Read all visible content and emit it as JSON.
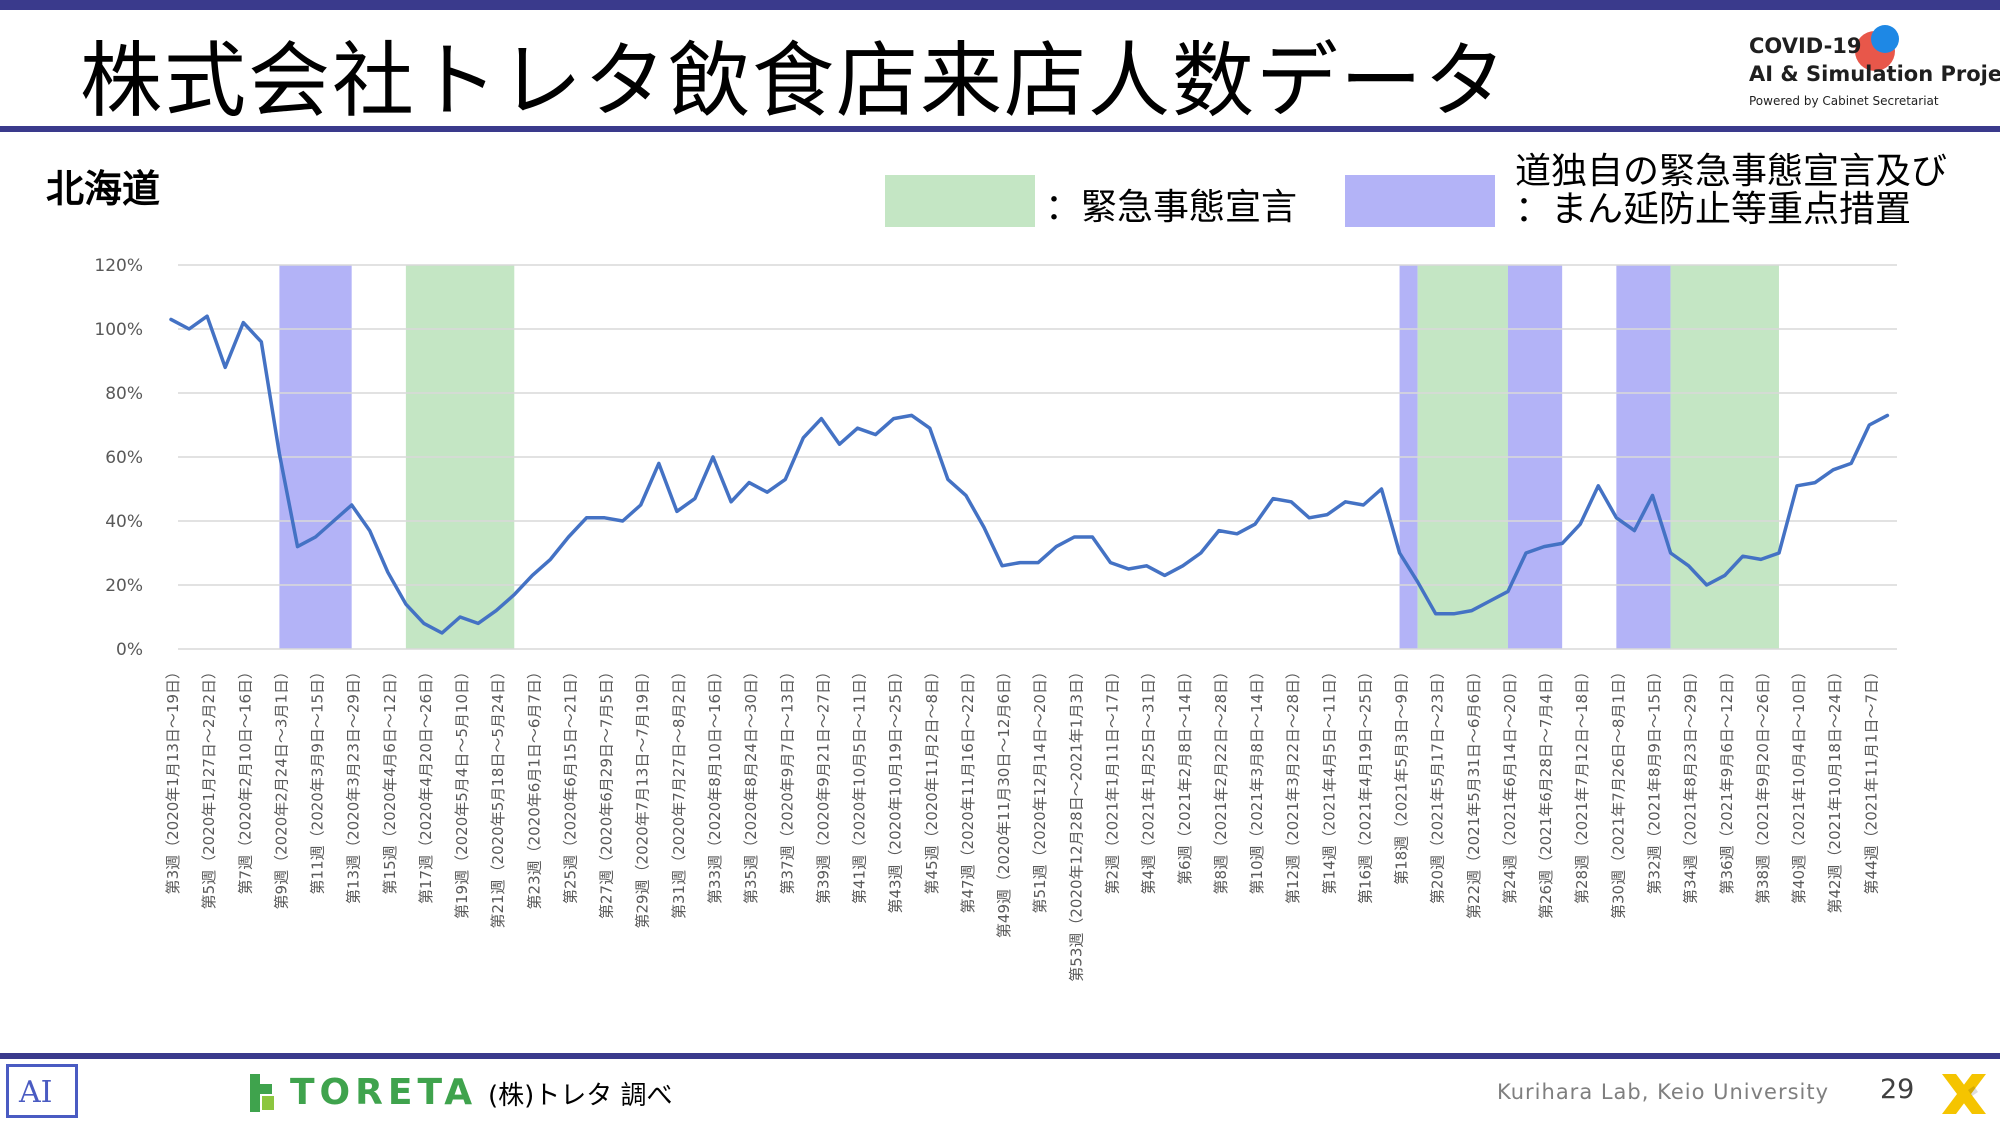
{
  "title": "株式会社トレタ飲食店来店人数データ",
  "logo": {
    "line1": "COVID-19",
    "line2": "AI & Simulation Project",
    "line3": "Powered by Cabinet Secretariat"
  },
  "region": "北海道",
  "legend": {
    "emergency": {
      "label": "：緊急事態宣言",
      "color": "#c4e6c4"
    },
    "prefectural": {
      "label_line1": "道独自の緊急事態宣言及び",
      "label_line2": "：まん延防止等重点措置",
      "color": "#b3b3f7"
    }
  },
  "colors": {
    "line": "#4472c4",
    "grid": "#d9d9d9",
    "axis_text": "#595959",
    "rule": "#3a3a8c"
  },
  "footer": {
    "source": "(株)トレタ 調べ",
    "lab": "Kurihara Lab, Keio University",
    "page": "29",
    "toreta": "TORETA",
    "ai_logo": "AI"
  },
  "chart_data": {
    "type": "line",
    "ylabel": "",
    "xlabel": "",
    "ylim": [
      0,
      120
    ],
    "yticks": [
      "0%",
      "20%",
      "40%",
      "60%",
      "80%",
      "100%",
      "120%"
    ],
    "grid": true,
    "x_labels": [
      "第3週（2020年1月13日～19日）",
      "第5週（2020年1月27日～2月2日）",
      "第7週（2020年2月10日～16日）",
      "第9週（2020年2月24日～3月1日）",
      "第11週（2020年3月9日～15日）",
      "第13週（2020年3月23日～29日）",
      "第15週（2020年4月6日～12日）",
      "第17週（2020年4月20日～26日）",
      "第19週（2020年5月4日～5月10日）",
      "第21週（2020年5月18日～5月24日）",
      "第23週（2020年6月1日～6月7日）",
      "第25週（2020年6月15日～21日）",
      "第27週（2020年6月29日～7月5日）",
      "第29週（2020年7月13日～7月19日）",
      "第31週（2020年7月27日～8月2日）",
      "第33週（2020年8月10日～16日）",
      "第35週（2020年8月24日～30日）",
      "第37週（2020年9月7日～13日）",
      "第39週（2020年9月21日～27日）",
      "第41週（2020年10月5日～11日）",
      "第43週（2020年10月19日～25日）",
      "第45週（2020年11月2日～8日）",
      "第47週（2020年11月16日～22日）",
      "第49週（2020年11月30日～12月6日）",
      "第51週（2020年12月14日～20日）",
      "第53週（2020年12月28日～2021年1月3日）",
      "第2週（2021年1月11日～17日）",
      "第4週（2021年1月25日～31日）",
      "第6週（2021年2月8日～14日）",
      "第8週（2021年2月22日～28日）",
      "第10週（2021年3月8日～14日）",
      "第12週（2021年3月22日～28日）",
      "第14週（2021年4月5日～11日）",
      "第16週（2021年4月19日～25日）",
      "第18週（2021年5月3日～9日）",
      "第20週（2021年5月17日～23日）",
      "第22週（2021年5月31日～6月6日）",
      "第24週（2021年6月14日～20日）",
      "第26週（2021年6月28日～7月4日）",
      "第28週（2021年7月12日～18日）",
      "第30週（2021年7月26日～8月1日）",
      "第32週（2021年8月9日～15日）",
      "第34週（2021年8月23日～29日）",
      "第36週（2021年9月6日～12日）",
      "第38週（2021年9月20日～26日）",
      "第40週（2021年10月4日～10日）",
      "第42週（2021年10月18日～24日）",
      "第44週（2021年11月1日～7日）"
    ],
    "series": [
      {
        "values": [
          103,
          100,
          104,
          88,
          102,
          96,
          61,
          32,
          35,
          40,
          45,
          37,
          24,
          14,
          8,
          5,
          10,
          8,
          12,
          17,
          23,
          28,
          35,
          41,
          41,
          40,
          45,
          58,
          43,
          47,
          60,
          46,
          52,
          49,
          53,
          66,
          72,
          64,
          69,
          67,
          72,
          73,
          69,
          53,
          48,
          38,
          26,
          27,
          27,
          32,
          35,
          35,
          27,
          25,
          26,
          23,
          26,
          30,
          37,
          36,
          39,
          47,
          46,
          41,
          42,
          46,
          45,
          50,
          30,
          21,
          11,
          11,
          12,
          15,
          18,
          30,
          32,
          33,
          39,
          51,
          41,
          37,
          48,
          30,
          26,
          20,
          23,
          29,
          28,
          30,
          51,
          52,
          56,
          58,
          70,
          73
        ]
      }
    ],
    "shaded_ranges": [
      {
        "type": "prefectural",
        "start_index": 6,
        "end_index": 10
      },
      {
        "type": "emergency",
        "start_index": 13,
        "end_index": 19
      },
      {
        "type": "prefectural",
        "start_index": 68,
        "end_index": 69
      },
      {
        "type": "emergency",
        "start_index": 69,
        "end_index": 74
      },
      {
        "type": "prefectural",
        "start_index": 74,
        "end_index": 77
      },
      {
        "type": "prefectural",
        "start_index": 80,
        "end_index": 83
      },
      {
        "type": "emergency",
        "start_index": 83,
        "end_index": 89
      }
    ]
  }
}
